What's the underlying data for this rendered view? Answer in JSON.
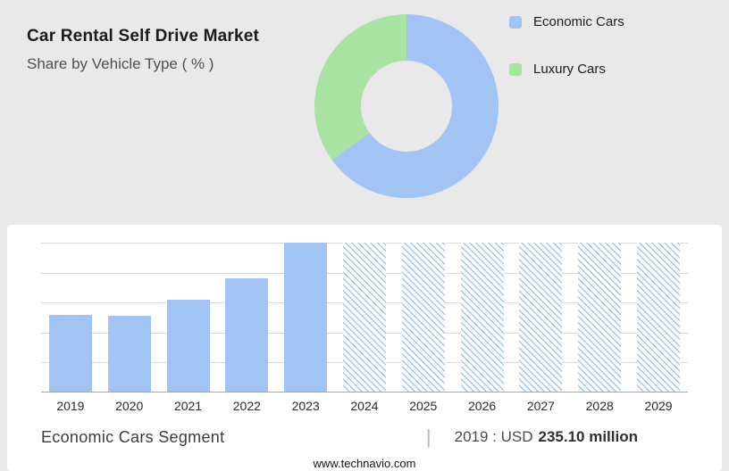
{
  "header": {
    "title": "Car Rental Self Drive Market",
    "subtitle": "Share by Vehicle Type ( % )"
  },
  "legend": [
    {
      "label": "Economic Cars",
      "color": "#a2c4f5"
    },
    {
      "label": "Luxury Cars",
      "color": "#a9e3a2"
    }
  ],
  "chart_data": [
    {
      "type": "pie",
      "title": "Share by Vehicle Type ( % )",
      "labels": [
        "Economic Cars",
        "Luxury Cars"
      ],
      "values": [
        65,
        35
      ],
      "colors": [
        "#a2c4f5",
        "#a9e3a2"
      ],
      "legend_position": "right",
      "donut": true
    },
    {
      "type": "bar",
      "categories": [
        "2019",
        "2020",
        "2021",
        "2022",
        "2023",
        "2024",
        "2025",
        "2026",
        "2027",
        "2028",
        "2029"
      ],
      "values": [
        52,
        51,
        62,
        76,
        100,
        100,
        100,
        100,
        100,
        100,
        100
      ],
      "forecast_from_index": 5,
      "bar_color": "#a2c4f5",
      "ylim": [
        0,
        100
      ],
      "grid": true,
      "gridline_positions_pct": [
        0,
        20,
        40,
        60,
        80
      ],
      "note": "historical bars solid 2019-2023, forecast bars hatched 2024-2029; no y-axis labels shown"
    }
  ],
  "caption": {
    "segment": "Economic Cars Segment",
    "separator": "|",
    "value_prefix": "2019 : USD",
    "value_bold": "235.10 million"
  },
  "footer": {
    "url": "www.technavio.com"
  }
}
